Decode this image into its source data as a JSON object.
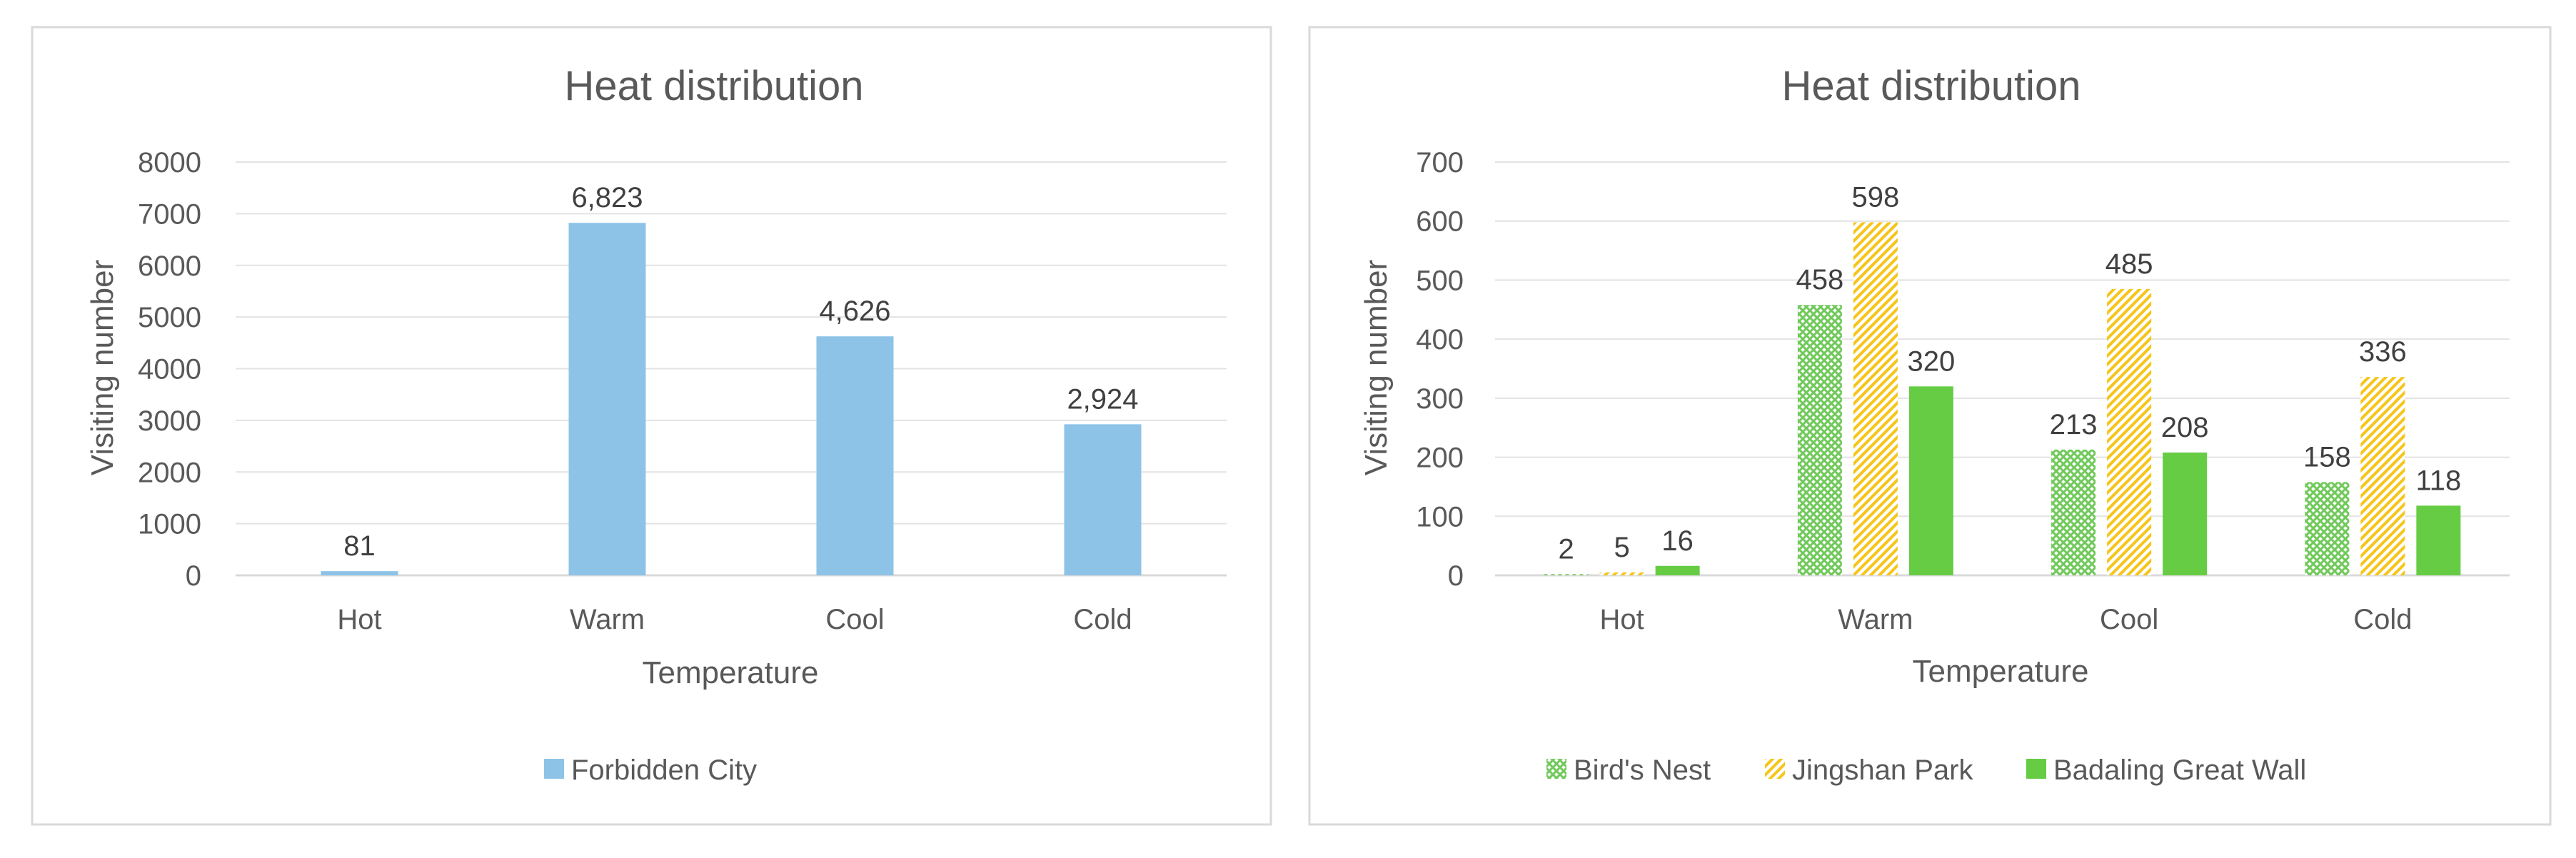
{
  "chart_data": [
    {
      "type": "bar",
      "title": "Heat distribution",
      "xlabel": "Temperature",
      "ylabel": "Visiting number",
      "categories": [
        "Hot",
        "Warm",
        "Cool",
        "Cold"
      ],
      "ylim": [
        0,
        8000
      ],
      "yticks": [
        "0",
        "1000",
        "2000",
        "3000",
        "4000",
        "5000",
        "6000",
        "7000",
        "8000"
      ],
      "grid": true,
      "legend_position": "bottom",
      "series": [
        {
          "name": "Forbidden City",
          "values": [
            81,
            6823,
            4626,
            2924
          ],
          "labels": [
            "81",
            "6,823",
            "4,626",
            "2,924"
          ],
          "color": "#8EC3E8",
          "pattern": "solid"
        }
      ]
    },
    {
      "type": "bar",
      "title": "Heat distribution",
      "xlabel": "Temperature",
      "ylabel": "Visiting number",
      "categories": [
        "Hot",
        "Warm",
        "Cool",
        "Cold"
      ],
      "ylim": [
        0,
        700
      ],
      "yticks": [
        "0",
        "100",
        "200",
        "300",
        "400",
        "500",
        "600",
        "700"
      ],
      "grid": true,
      "legend_position": "bottom",
      "series": [
        {
          "name": "Bird's Nest",
          "values": [
            2,
            458,
            213,
            158
          ],
          "labels": [
            "2",
            "458",
            "213",
            "158"
          ],
          "color": "#70C95A",
          "pattern": "crosshatch"
        },
        {
          "name": "Jingshan Park",
          "values": [
            5,
            598,
            485,
            336
          ],
          "labels": [
            "5",
            "598",
            "485",
            "336"
          ],
          "color": "#F5C518",
          "pattern": "diagonal"
        },
        {
          "name": "Badaling Great Wall",
          "values": [
            16,
            320,
            208,
            118
          ],
          "labels": [
            "16",
            "320",
            "208",
            "118"
          ],
          "color": "#66CC44",
          "pattern": "solid"
        }
      ]
    }
  ]
}
